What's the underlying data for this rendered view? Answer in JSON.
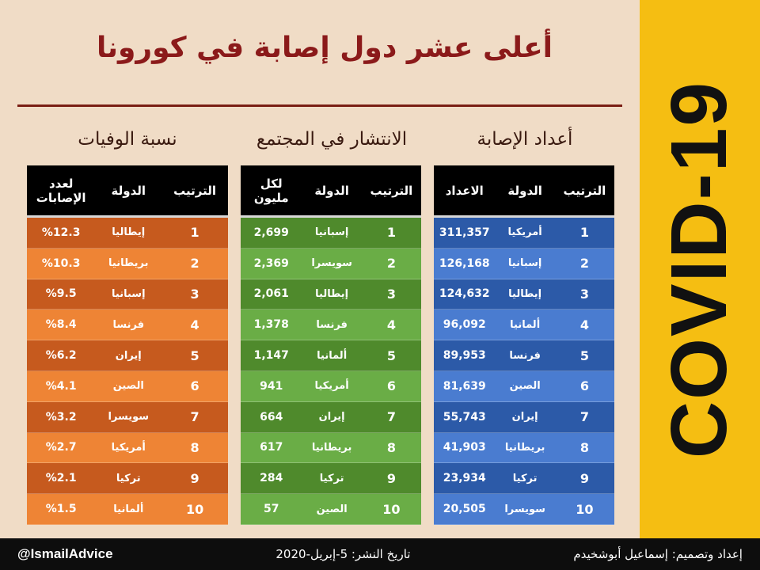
{
  "title": "أعلى عشر دول إصابة في كورونا",
  "side_label": "COVID-19",
  "colors": {
    "background": "#f0dcc6",
    "side_band": "#f5be12",
    "title": "#8b1a1a",
    "deaths_dark": "#c65a1e",
    "deaths_light": "#ee8435",
    "spread_dark": "#4f8a2c",
    "spread_light": "#6aad46",
    "cases_dark": "#2c5aa8",
    "cases_light": "#4a7cd0"
  },
  "sections": {
    "cases": {
      "title": "أعداد الإصابة",
      "headers": {
        "rank": "الترتيب",
        "country": "الدولة",
        "value": "الاعداد"
      },
      "rows": [
        {
          "rank": "1",
          "country": "أمريكيا",
          "value": "311,357"
        },
        {
          "rank": "2",
          "country": "إسبانيا",
          "value": "126,168"
        },
        {
          "rank": "3",
          "country": "إيطاليا",
          "value": "124,632"
        },
        {
          "rank": "4",
          "country": "ألمانيا",
          "value": "96,092"
        },
        {
          "rank": "5",
          "country": "فرنسا",
          "value": "89,953"
        },
        {
          "rank": "6",
          "country": "الصين",
          "value": "81,639"
        },
        {
          "rank": "7",
          "country": "إيران",
          "value": "55,743"
        },
        {
          "rank": "8",
          "country": "بريطانيا",
          "value": "41,903"
        },
        {
          "rank": "9",
          "country": "تركيا",
          "value": "23,934"
        },
        {
          "rank": "10",
          "country": "سويسرا",
          "value": "20,505"
        }
      ]
    },
    "spread": {
      "title": "الانتشار في المجتمع",
      "headers": {
        "rank": "الترتيب",
        "country": "الدولة",
        "value_line1": "لكل",
        "value_line2": "مليون"
      },
      "rows": [
        {
          "rank": "1",
          "country": "إسبانيا",
          "value": "2,699"
        },
        {
          "rank": "2",
          "country": "سويسرا",
          "value": "2,369"
        },
        {
          "rank": "3",
          "country": "إيطاليا",
          "value": "2,061"
        },
        {
          "rank": "4",
          "country": "فرنسا",
          "value": "1,378"
        },
        {
          "rank": "5",
          "country": "ألمانيا",
          "value": "1,147"
        },
        {
          "rank": "6",
          "country": "أمريكيا",
          "value": "941"
        },
        {
          "rank": "7",
          "country": "إيران",
          "value": "664"
        },
        {
          "rank": "8",
          "country": "بريطانيا",
          "value": "617"
        },
        {
          "rank": "9",
          "country": "تركيا",
          "value": "284"
        },
        {
          "rank": "10",
          "country": "الصين",
          "value": "57"
        }
      ]
    },
    "deaths": {
      "title": "نسبة الوفيات",
      "headers": {
        "rank": "الترتيب",
        "country": "الدولة",
        "value_line1": "لعدد",
        "value_line2": "الإصابات"
      },
      "rows": [
        {
          "rank": "1",
          "country": "إيطاليا",
          "value": "%12.3"
        },
        {
          "rank": "2",
          "country": "بريطانيا",
          "value": "%10.3"
        },
        {
          "rank": "3",
          "country": "إسبانيا",
          "value": "%9.5"
        },
        {
          "rank": "4",
          "country": "فرنسا",
          "value": "%8.4"
        },
        {
          "rank": "5",
          "country": "إيران",
          "value": "%6.2"
        },
        {
          "rank": "6",
          "country": "الصين",
          "value": "%4.1"
        },
        {
          "rank": "7",
          "country": "سويسرا",
          "value": "%3.2"
        },
        {
          "rank": "8",
          "country": "أمريكيا",
          "value": "%2.7"
        },
        {
          "rank": "9",
          "country": "تركيا",
          "value": "%2.1"
        },
        {
          "rank": "10",
          "country": "ألمانيا",
          "value": "%1.5"
        }
      ]
    }
  },
  "footer": {
    "handle": "@IsmailAdvice",
    "date": "تاريخ النشر: 5-إبريل-2020",
    "credit": "إعداد وتصميم: إسماعيل أبوشخيدم"
  }
}
